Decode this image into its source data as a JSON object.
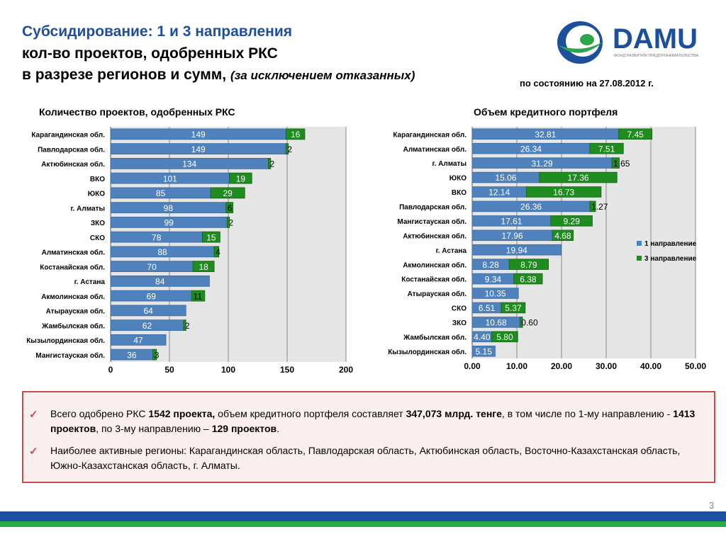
{
  "header": {
    "title_line1": "Субсидирование: 1 и 3 направления",
    "title_line2": "кол-во проектов, одобренных РКС",
    "title_line3": "в разрезе регионов и сумм,",
    "title_line3_note": "(за исключением отказанных)",
    "as_of": "по состоянию на 27.08.2012 г."
  },
  "logo": {
    "name": "DAMU",
    "subtitle": "ФОНД РАЗВИТИЯ ПРЕДПРИНИМАТЕЛЬСТВА"
  },
  "colors": {
    "dir1": "#4f81bd",
    "dir3": "#1e8c1e",
    "accent_blue": "#1c4f9c",
    "accent_green": "#2aa84a",
    "frame": "#c0504d"
  },
  "chart_data": [
    {
      "type": "bar",
      "orientation": "horizontal",
      "stacked": true,
      "title": "Количество проектов, одобренных РКС",
      "categories": [
        "Карагандинская обл.",
        "Павлодарская обл.",
        "Актюбинская обл.",
        "ВКО",
        "ЮКО",
        "г. Алматы",
        "ЗКО",
        "СКО",
        "Алматинская обл.",
        "Костанайская обл.",
        "г. Астана",
        "Акмолинская обл.",
        "Атырауская обл.",
        "Жамбылская обл.",
        "Кызылординская обл.",
        "Мангистауская обл."
      ],
      "series": [
        {
          "values": [
            149,
            149,
            134,
            101,
            85,
            98,
            99,
            78,
            88,
            70,
            84,
            69,
            64,
            62,
            47,
            36
          ],
          "labels": [
            "149",
            "149",
            "134",
            "101",
            "85",
            "98",
            "99",
            "78",
            "88",
            "70",
            "84",
            "69",
            "64",
            "62",
            "47",
            "36"
          ]
        },
        {
          "values": [
            16,
            2,
            2,
            19,
            29,
            6,
            2,
            15,
            4,
            18,
            0,
            11,
            0,
            2,
            0,
            3
          ],
          "labels": [
            "16",
            "2",
            "2",
            "19",
            "29",
            "6",
            "2",
            "15",
            "4",
            "18",
            "",
            "11",
            "",
            "2",
            "",
            "3"
          ]
        }
      ],
      "xlim": [
        0,
        200
      ],
      "xticks": [
        "0",
        "50",
        "100",
        "150",
        "200"
      ],
      "grid": true
    },
    {
      "type": "bar",
      "orientation": "horizontal",
      "stacked": true,
      "title": "Объем кредитного портфеля",
      "categories": [
        "Карагандинская обл.",
        "Алматинская обл.",
        "г. Алматы",
        "ЮКО",
        "ВКО",
        "Павлодарская обл.",
        "Мангистауская обл.",
        "Актюбинская обл.",
        "г. Астана",
        "Акмолинская обл.",
        "Костанайская обл.",
        "Атырауская обл.",
        "СКО",
        "ЗКО",
        "Жамбылская обл.",
        "Кызылординская обл."
      ],
      "series": [
        {
          "name": "1 направление",
          "values": [
            32.81,
            26.34,
            31.29,
            15.06,
            12.14,
            26.36,
            17.61,
            17.96,
            19.94,
            8.28,
            9.34,
            10.35,
            6.51,
            10.68,
            4.4,
            5.15
          ],
          "labels": [
            "32.81",
            "26.34",
            "31.29",
            "15.06",
            "12.14",
            "26.36",
            "17.61",
            "17.96",
            "19.94",
            "8.28",
            "9.34",
            "10.35",
            "6.51",
            "10.68",
            "4.40",
            "5.15"
          ]
        },
        {
          "name": "3 направление",
          "values": [
            7.45,
            7.51,
            1.65,
            17.36,
            16.73,
            1.27,
            9.29,
            4.68,
            0,
            8.79,
            6.38,
            0,
            5.37,
            0.6,
            5.8,
            0
          ],
          "labels": [
            "7.45",
            "7.51",
            "1.65",
            "17.36",
            "16.73",
            "1.27",
            "9.29",
            "4.68",
            "",
            "8.79",
            "6.38",
            "",
            "5.37",
            "0.60",
            "5.80",
            ""
          ]
        }
      ],
      "xlim": [
        0,
        50
      ],
      "xticks": [
        "0.00",
        "10.00",
        "20.00",
        "30.00",
        "40.00",
        "50.00"
      ],
      "legend": [
        "1 направление",
        "3 направление"
      ],
      "legend_position": "right",
      "grid": true
    }
  ],
  "summary": {
    "p1_a": "Всего одобрено РКС ",
    "p1_b": "1542 проекта,",
    "p1_c": " объем кредитного портфеля составляет ",
    "p1_d": "347,073 млрд. тенге",
    "p1_e": ", в том числе по 1-му направлению -  ",
    "p1_f": "1413 проектов",
    "p1_g": ", по 3-му направлению – ",
    "p1_h": "129 проектов",
    "p1_i": ".",
    "p2": "Наиболее активные регионы: Карагандинская область, Павлодарская область, Актюбинская область, Восточно-Казахстанская область, Южно-Казахстанская область, г. Алматы.",
    "check": "✓"
  },
  "page_number": "3"
}
